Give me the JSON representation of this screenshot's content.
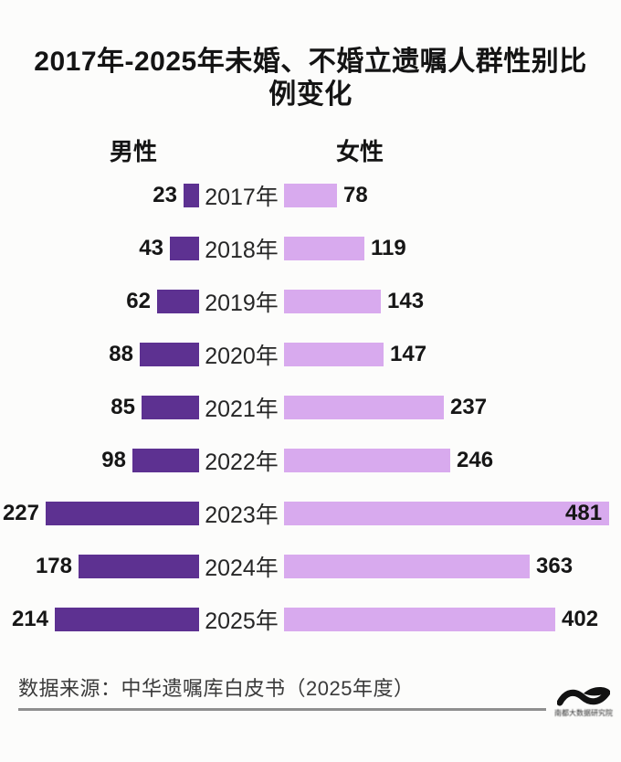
{
  "title": "2017年-2025年未婚、不婚立遗嘱人群性别比例变化",
  "legend": {
    "male": "男性",
    "female": "女性"
  },
  "source": "数据来源：中华遗嘱库白皮书（2025年度）",
  "watermark": {
    "icon": "wave-logo",
    "text": "南都大数据研究院"
  },
  "colors": {
    "male_bar": "#5d3191",
    "female_bar": "#d8aaee",
    "text": "#141414",
    "divider": "#8f8f8f",
    "background": "#fcfcfb"
  },
  "chart_data": {
    "type": "bar",
    "orientation": "horizontal-diverging",
    "title": "2017年-2025年未婚、不婚立遗嘱人群性别比例变化",
    "categories": [
      "2017年",
      "2018年",
      "2019年",
      "2020年",
      "2021年",
      "2022年",
      "2023年",
      "2024年",
      "2025年"
    ],
    "series": [
      {
        "name": "男性",
        "values": [
          23,
          43,
          62,
          88,
          85,
          98,
          227,
          178,
          214
        ]
      },
      {
        "name": "女性",
        "values": [
          78,
          119,
          143,
          147,
          237,
          246,
          481,
          363,
          402
        ]
      }
    ],
    "value_labels": "shown-at-bar-ends",
    "xlim": [
      0,
      481
    ],
    "grid": false,
    "legend_position": "top",
    "source": "数据来源：中华遗嘱库白皮书（2025年度）"
  }
}
